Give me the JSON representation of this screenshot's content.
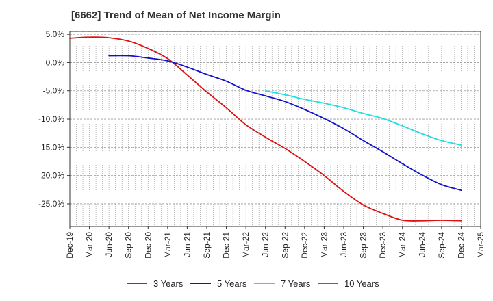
{
  "chart_data": {
    "type": "line",
    "title": "[6662]  Trend of Mean of Net Income Margin",
    "xlabel": "",
    "ylabel": "",
    "x_ticks": [
      "Dec-19",
      "Mar-20",
      "Jun-20",
      "Sep-20",
      "Dec-20",
      "Mar-21",
      "Jun-21",
      "Sep-21",
      "Dec-21",
      "Mar-22",
      "Jun-22",
      "Sep-22",
      "Dec-22",
      "Mar-23",
      "Jun-23",
      "Sep-23",
      "Dec-23",
      "Mar-24",
      "Jun-24",
      "Sep-24",
      "Dec-24",
      "Mar-25"
    ],
    "y_ticks": [
      5,
      0,
      -5,
      -10,
      -15,
      -20,
      -25
    ],
    "y_tick_labels": [
      "5.0%",
      "0.0%",
      "-5.0%",
      "-10.0%",
      "-15.0%",
      "-20.0%",
      "-25.0%"
    ],
    "ylim": [
      -29,
      5.5
    ],
    "grid": true,
    "legend_position": "bottom",
    "series": [
      {
        "name": "3 Years",
        "color": "#dd1111",
        "x": [
          "Dec-19",
          "Mar-20",
          "Jun-20",
          "Sep-20",
          "Dec-20",
          "Mar-21",
          "Jun-21",
          "Sep-21",
          "Dec-21",
          "Mar-22",
          "Jun-22",
          "Sep-22",
          "Dec-22",
          "Mar-23",
          "Jun-23",
          "Sep-23",
          "Dec-23",
          "Mar-24",
          "Jun-24",
          "Sep-24",
          "Dec-24"
        ],
        "values": [
          4.3,
          4.5,
          4.4,
          3.8,
          2.5,
          0.7,
          -2.2,
          -5.2,
          -8.0,
          -11.0,
          -13.2,
          -15.2,
          -17.5,
          -20.0,
          -22.8,
          -25.2,
          -26.7,
          -27.9,
          -28.0,
          -27.9,
          -28.0
        ]
      },
      {
        "name": "5 Years",
        "color": "#1111cc",
        "x": [
          "Jun-20",
          "Sep-20",
          "Dec-20",
          "Mar-21",
          "Jun-21",
          "Sep-21",
          "Dec-21",
          "Mar-22",
          "Jun-22",
          "Sep-22",
          "Dec-22",
          "Mar-23",
          "Jun-23",
          "Sep-23",
          "Dec-23",
          "Mar-24",
          "Jun-24",
          "Sep-24",
          "Dec-24"
        ],
        "values": [
          1.2,
          1.2,
          0.8,
          0.3,
          -0.8,
          -2.1,
          -3.3,
          -4.9,
          -5.9,
          -6.9,
          -8.3,
          -9.9,
          -11.7,
          -13.8,
          -15.8,
          -17.9,
          -19.9,
          -21.6,
          -22.6
        ]
      },
      {
        "name": "7 Years",
        "color": "#22dddd",
        "x": [
          "Jun-22",
          "Sep-22",
          "Dec-22",
          "Mar-23",
          "Jun-23",
          "Sep-23",
          "Dec-23",
          "Mar-24",
          "Jun-24",
          "Sep-24",
          "Dec-24"
        ],
        "values": [
          -5.0,
          -5.7,
          -6.5,
          -7.2,
          -8.0,
          -9.0,
          -9.9,
          -11.2,
          -12.6,
          -13.8,
          -14.6
        ]
      },
      {
        "name": "10 Years",
        "color": "#229922",
        "x": [],
        "values": []
      }
    ]
  }
}
